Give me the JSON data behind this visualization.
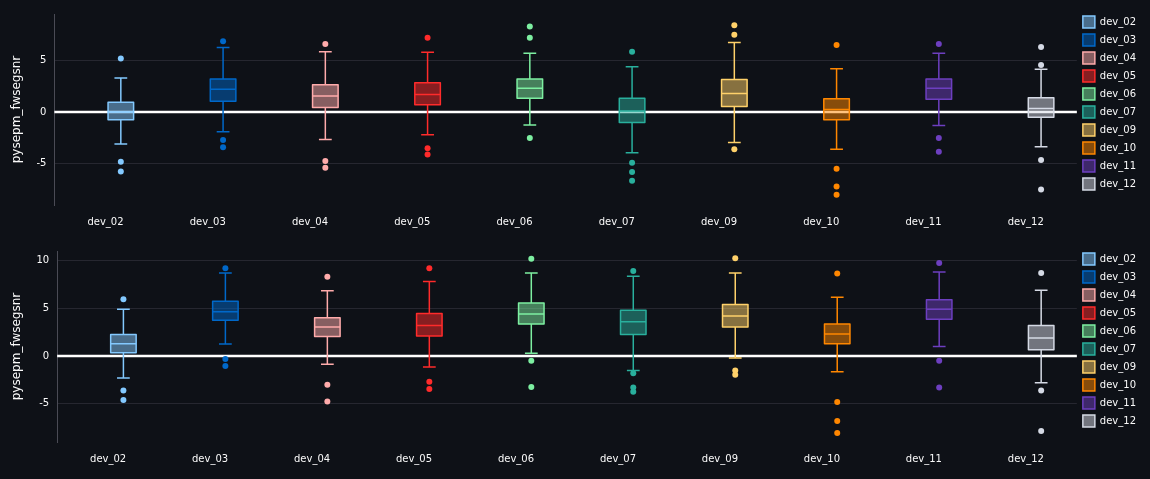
{
  "chart_data": [
    {
      "type": "box",
      "ylabel": "pysepm_fwsegsnr",
      "categories": [
        "dev_02",
        "dev_03",
        "dev_04",
        "dev_05",
        "dev_06",
        "dev_07",
        "dev_09",
        "dev_10",
        "dev_11",
        "dev_12"
      ],
      "ylim": [
        -9,
        9.5
      ],
      "yticks": [
        -5,
        0,
        5
      ],
      "grid": "y",
      "legend": "top right",
      "marker": "circle",
      "ref_lines": [
        {
          "axis": "y",
          "value": 0,
          "color": "#ffffff"
        }
      ],
      "series": [
        {
          "name": "dev_02",
          "color": "#83c9ff",
          "boxes": [
            {
              "low": -3.1,
              "q1": -0.75,
              "median": 0.0,
              "q3": 0.95,
              "high": 3.3,
              "outliers": [
                5.2,
                -4.8,
                -5.75
              ]
            },
            null,
            null,
            null,
            null,
            null,
            null,
            null,
            null,
            null
          ]
        },
        {
          "name": "dev_03",
          "color": "#0068c9",
          "boxes": [
            null,
            {
              "low": -1.9,
              "q1": 1.05,
              "median": 2.2,
              "q3": 3.2,
              "high": 6.25,
              "outliers": [
                6.85,
                -2.7,
                -3.4
              ]
            },
            null,
            null,
            null,
            null,
            null,
            null,
            null,
            null
          ]
        },
        {
          "name": "dev_04",
          "color": "#ffabab",
          "boxes": [
            null,
            null,
            {
              "low": -2.65,
              "q1": 0.45,
              "median": 1.55,
              "q3": 2.65,
              "high": 5.85,
              "outliers": [
                6.6,
                -4.75,
                -5.4
              ]
            },
            null,
            null,
            null,
            null,
            null,
            null,
            null
          ]
        },
        {
          "name": "dev_05",
          "color": "#ff2b2b",
          "boxes": [
            null,
            null,
            null,
            {
              "low": -2.2,
              "q1": 0.7,
              "median": 1.7,
              "q3": 2.85,
              "high": 5.8,
              "outliers": [
                7.2,
                -3.5,
                -4.1
              ]
            },
            null,
            null,
            null,
            null,
            null,
            null
          ]
        },
        {
          "name": "dev_06",
          "color": "#7defa1",
          "boxes": [
            null,
            null,
            null,
            null,
            {
              "low": -1.25,
              "q1": 1.35,
              "median": 2.3,
              "q3": 3.2,
              "high": 5.7,
              "outliers": [
                8.3,
                7.2,
                -2.5
              ]
            },
            null,
            null,
            null,
            null,
            null
          ]
        },
        {
          "name": "dev_07",
          "color": "#29b09d",
          "boxes": [
            null,
            null,
            null,
            null,
            null,
            {
              "low": -3.95,
              "q1": -1.0,
              "median": 0.1,
              "q3": 1.35,
              "high": 4.4,
              "outliers": [
                5.85,
                -4.9,
                -5.8,
                -6.65
              ]
            },
            null,
            null,
            null,
            null
          ]
        },
        {
          "name": "dev_09",
          "color": "#ffd16a",
          "boxes": [
            null,
            null,
            null,
            null,
            null,
            null,
            {
              "low": -2.95,
              "q1": 0.55,
              "median": 1.8,
              "q3": 3.15,
              "high": 6.75,
              "outliers": [
                8.4,
                7.5,
                -3.6
              ]
            },
            null,
            null,
            null
          ]
        },
        {
          "name": "dev_10",
          "color": "#ff8700",
          "boxes": [
            null,
            null,
            null,
            null,
            null,
            null,
            null,
            {
              "low": -3.6,
              "q1": -0.75,
              "median": 0.25,
              "q3": 1.3,
              "high": 4.2,
              "outliers": [
                6.5,
                -5.5,
                -7.2,
                -8.0
              ]
            },
            null,
            null
          ]
        },
        {
          "name": "dev_11",
          "color": "#6d3fc0",
          "boxes": [
            null,
            null,
            null,
            null,
            null,
            null,
            null,
            null,
            {
              "low": -1.3,
              "q1": 1.25,
              "median": 2.3,
              "q3": 3.2,
              "high": 5.7,
              "outliers": [
                6.6,
                -2.5,
                -3.85
              ]
            },
            null
          ]
        },
        {
          "name": "dev_12",
          "color": "#d5dae5",
          "boxes": [
            null,
            null,
            null,
            null,
            null,
            null,
            null,
            null,
            null,
            {
              "low": -3.35,
              "q1": -0.5,
              "median": 0.35,
              "q3": 1.4,
              "high": 4.15,
              "outliers": [
                6.3,
                4.55,
                -4.65,
                -7.5
              ]
            }
          ]
        }
      ]
    },
    {
      "type": "box",
      "ylabel": "pysepm_fwsegsnr",
      "categories": [
        "dev_02",
        "dev_03",
        "dev_04",
        "dev_05",
        "dev_06",
        "dev_07",
        "dev_09",
        "dev_10",
        "dev_11",
        "dev_12"
      ],
      "ylim": [
        -9,
        11
      ],
      "yticks": [
        -5,
        0,
        5,
        10
      ],
      "grid": "y",
      "legend": "top right",
      "marker": "circle",
      "ref_lines": [
        {
          "axis": "y",
          "value": 0,
          "color": "#ffffff"
        }
      ],
      "series": [
        {
          "name": "dev_02",
          "color": "#83c9ff",
          "boxes": [
            {
              "low": -2.3,
              "q1": 0.35,
              "median": 1.3,
              "q3": 2.25,
              "high": 4.9,
              "outliers": [
                5.95,
                -3.6,
                -4.6
              ]
            },
            null,
            null,
            null,
            null,
            null,
            null,
            null,
            null,
            null
          ]
        },
        {
          "name": "dev_03",
          "color": "#0068c9",
          "boxes": [
            null,
            {
              "low": 1.25,
              "q1": 3.75,
              "median": 4.65,
              "q3": 5.75,
              "high": 8.7,
              "outliers": [
                9.2,
                -0.3,
                -1.05
              ]
            },
            null,
            null,
            null,
            null,
            null,
            null,
            null,
            null
          ]
        },
        {
          "name": "dev_04",
          "color": "#ffabab",
          "boxes": [
            null,
            null,
            {
              "low": -0.85,
              "q1": 2.05,
              "median": 3.05,
              "q3": 4.0,
              "high": 6.85,
              "outliers": [
                8.3,
                -3.0,
                -4.75
              ]
            },
            null,
            null,
            null,
            null,
            null,
            null,
            null
          ]
        },
        {
          "name": "dev_05",
          "color": "#ff2b2b",
          "boxes": [
            null,
            null,
            null,
            {
              "low": -1.15,
              "q1": 2.1,
              "median": 3.2,
              "q3": 4.45,
              "high": 7.8,
              "outliers": [
                9.2,
                -2.7,
                -3.45
              ]
            },
            null,
            null,
            null,
            null,
            null,
            null
          ]
        },
        {
          "name": "dev_06",
          "color": "#7defa1",
          "boxes": [
            null,
            null,
            null,
            null,
            {
              "low": 0.3,
              "q1": 3.35,
              "median": 4.4,
              "q3": 5.55,
              "high": 8.7,
              "outliers": [
                10.2,
                -0.5,
                -3.25
              ]
            },
            null,
            null,
            null,
            null,
            null
          ]
        },
        {
          "name": "dev_07",
          "color": "#29b09d",
          "boxes": [
            null,
            null,
            null,
            null,
            null,
            {
              "low": -1.5,
              "q1": 2.25,
              "median": 3.6,
              "q3": 4.8,
              "high": 8.35,
              "outliers": [
                8.9,
                -1.8,
                -3.3,
                -3.75
              ]
            },
            null,
            null,
            null,
            null
          ]
        },
        {
          "name": "dev_09",
          "color": "#ffd16a",
          "boxes": [
            null,
            null,
            null,
            null,
            null,
            null,
            {
              "low": -0.2,
              "q1": 3.05,
              "median": 4.2,
              "q3": 5.4,
              "high": 8.7,
              "outliers": [
                10.25,
                -1.5,
                -1.95
              ]
            },
            null,
            null,
            null
          ]
        },
        {
          "name": "dev_10",
          "color": "#ff8700",
          "boxes": [
            null,
            null,
            null,
            null,
            null,
            null,
            null,
            {
              "low": -1.65,
              "q1": 1.3,
              "median": 2.3,
              "q3": 3.35,
              "high": 6.15,
              "outliers": [
                8.65,
                -4.8,
                -6.8,
                -8.05
              ]
            },
            null,
            null
          ]
        },
        {
          "name": "dev_11",
          "color": "#6d3fc0",
          "boxes": [
            null,
            null,
            null,
            null,
            null,
            null,
            null,
            null,
            {
              "low": 1.0,
              "q1": 3.85,
              "median": 4.9,
              "q3": 5.9,
              "high": 8.8,
              "outliers": [
                9.75,
                -0.5,
                -3.3
              ]
            },
            null
          ]
        },
        {
          "name": "dev_12",
          "color": "#d5dae5",
          "boxes": [
            null,
            null,
            null,
            null,
            null,
            null,
            null,
            null,
            null,
            {
              "low": -2.8,
              "q1": 0.65,
              "median": 1.9,
              "q3": 3.2,
              "high": 6.9,
              "outliers": [
                8.7,
                -3.6,
                -7.85
              ]
            }
          ]
        }
      ]
    }
  ]
}
